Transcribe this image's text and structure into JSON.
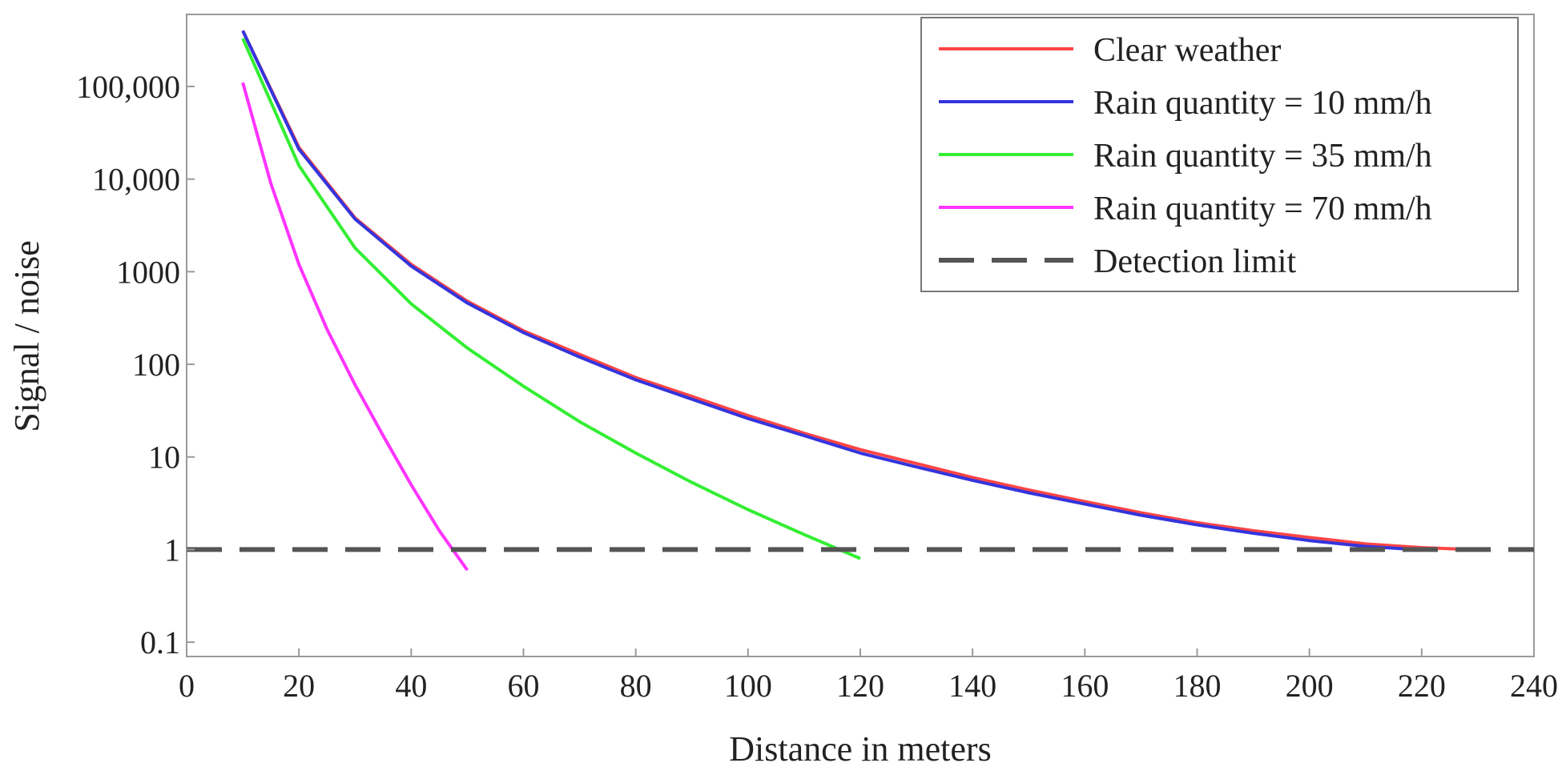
{
  "chart_data": {
    "type": "line",
    "title": "",
    "xlabel": "Distance in meters",
    "ylabel": "Signal / noise",
    "xscale": "linear",
    "yscale": "log",
    "xlim": [
      0,
      240
    ],
    "ylim": [
      0.07,
      600000
    ],
    "x_ticks": [
      0,
      20,
      40,
      60,
      80,
      100,
      120,
      140,
      160,
      180,
      200,
      220,
      240
    ],
    "x_tick_labels": [
      "0",
      "20",
      "40",
      "60",
      "80",
      "100",
      "120",
      "140",
      "160",
      "180",
      "200",
      "220",
      "240"
    ],
    "y_ticks": [
      0.1,
      1,
      10,
      100,
      1000,
      10000,
      100000
    ],
    "y_tick_labels": [
      "0.1",
      "1",
      "10",
      "100",
      "1000",
      "10,000",
      "100,000"
    ],
    "grid": false,
    "legend_position": "top-right",
    "series": [
      {
        "name": "Clear weather",
        "color": "#ff4545",
        "dash": "solid",
        "x": [
          10,
          20,
          30,
          40,
          50,
          60,
          70,
          80,
          90,
          100,
          110,
          120,
          130,
          140,
          150,
          160,
          170,
          180,
          190,
          200,
          210,
          220,
          229
        ],
        "y": [
          400000,
          22000,
          3800,
          1200,
          480,
          230,
          128,
          72,
          45,
          28,
          18,
          12,
          8.5,
          6,
          4.4,
          3.3,
          2.5,
          1.95,
          1.6,
          1.35,
          1.15,
          1.05,
          1.0
        ]
      },
      {
        "name": "Rain quantity = 10 mm/h",
        "color": "#3434dd",
        "dash": "solid",
        "x": [
          10,
          20,
          30,
          40,
          50,
          60,
          70,
          80,
          90,
          100,
          110,
          120,
          130,
          140,
          150,
          160,
          170,
          180,
          190,
          200,
          210,
          219
        ],
        "y": [
          400000,
          21000,
          3700,
          1150,
          460,
          220,
          120,
          68,
          42,
          26,
          17,
          11,
          7.8,
          5.6,
          4.1,
          3.1,
          2.35,
          1.85,
          1.5,
          1.25,
          1.08,
          1.0
        ]
      },
      {
        "name": "Rain quantity = 35 mm/h",
        "color": "#33ee33",
        "dash": "solid",
        "x": [
          10,
          20,
          30,
          40,
          50,
          60,
          70,
          80,
          90,
          100,
          110,
          120
        ],
        "y": [
          330000,
          14000,
          1800,
          450,
          150,
          58,
          24,
          11,
          5.3,
          2.7,
          1.45,
          0.8
        ]
      },
      {
        "name": "Rain quantity = 70 mm/h",
        "color": "#ff33ff",
        "dash": "solid",
        "x": [
          10,
          15,
          20,
          25,
          30,
          35,
          40,
          45,
          50
        ],
        "y": [
          110000,
          9000,
          1200,
          240,
          60,
          17,
          5,
          1.6,
          0.6
        ]
      },
      {
        "name": "Detection limit",
        "color": "#555555",
        "dash": "dashed",
        "x": [
          0,
          240
        ],
        "y": [
          1,
          1
        ]
      }
    ]
  }
}
